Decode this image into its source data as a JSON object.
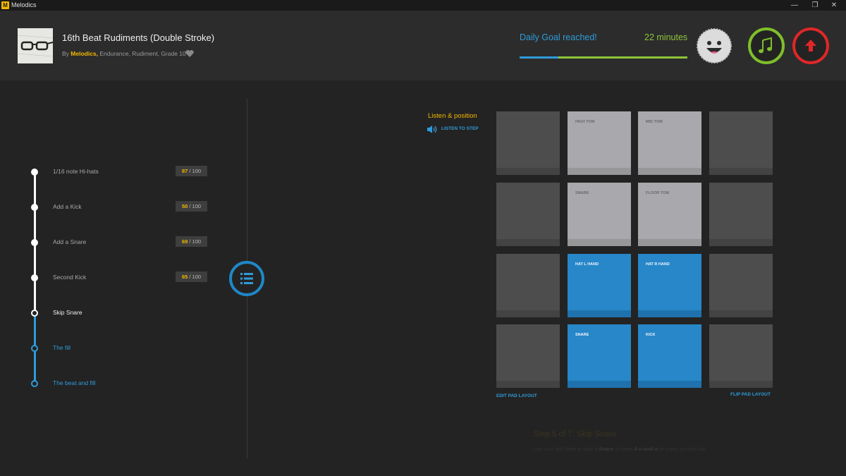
{
  "window": {
    "app_title": "Melodics",
    "logo_letter": "M"
  },
  "header": {
    "title": "16th Beat Rudiments (Double Stroke)",
    "meta_prefix": "By ",
    "meta_brand": "Melodics,",
    "meta_tags": " Endurance, Rudiment, Grade 10",
    "goal_text": "Daily Goal reached!",
    "goal_minutes": "22 minutes",
    "goal_progress": 0.23
  },
  "steps": [
    {
      "label": "1/16 note Hi-hats",
      "score": "87",
      "max": " / 100",
      "state": "done"
    },
    {
      "label": "Add a Kick",
      "score": "50",
      "max": " / 100",
      "state": "done"
    },
    {
      "label": "Add a Snare",
      "score": "69",
      "max": " / 100",
      "state": "done"
    },
    {
      "label": "Second Kick",
      "score": "65",
      "max": " / 100",
      "state": "done"
    },
    {
      "label": "Skip Snare",
      "state": "current"
    },
    {
      "label": "The fill",
      "state": "upcoming"
    },
    {
      "label": "The beat and fill",
      "state": "upcoming"
    }
  ],
  "listen": {
    "title": "Listen & position",
    "button": "LISTEN TO STEP"
  },
  "pads": {
    "r1": [
      "",
      "HIGH TOM",
      "MID TOM",
      ""
    ],
    "r2": [
      "",
      "SNARE",
      "FLOOR TOM",
      ""
    ],
    "r3": [
      "",
      "HAT L HAND",
      "HAT R HAND",
      ""
    ],
    "r4": [
      "",
      "SNARE",
      "KICK",
      ""
    ]
  },
  "pad_actions": {
    "edit": "EDIT PAD LAYOUT",
    "flip": "FLIP PAD LAYOUT"
  },
  "step_info": {
    "title": "Step 5 of 7: Skip Snare",
    "desc_1": "Use your left hand to play a ",
    "desc_snare": "Snare",
    "desc_2": " on beat ",
    "desc_beat": "4-e-and-a",
    "desc_3": " of every second bar."
  },
  "colors": {
    "accent_blue": "#2f9bd9",
    "brand_yellow": "#f5b800",
    "goal_green": "#8fc43a",
    "alert_red": "#e02727"
  }
}
